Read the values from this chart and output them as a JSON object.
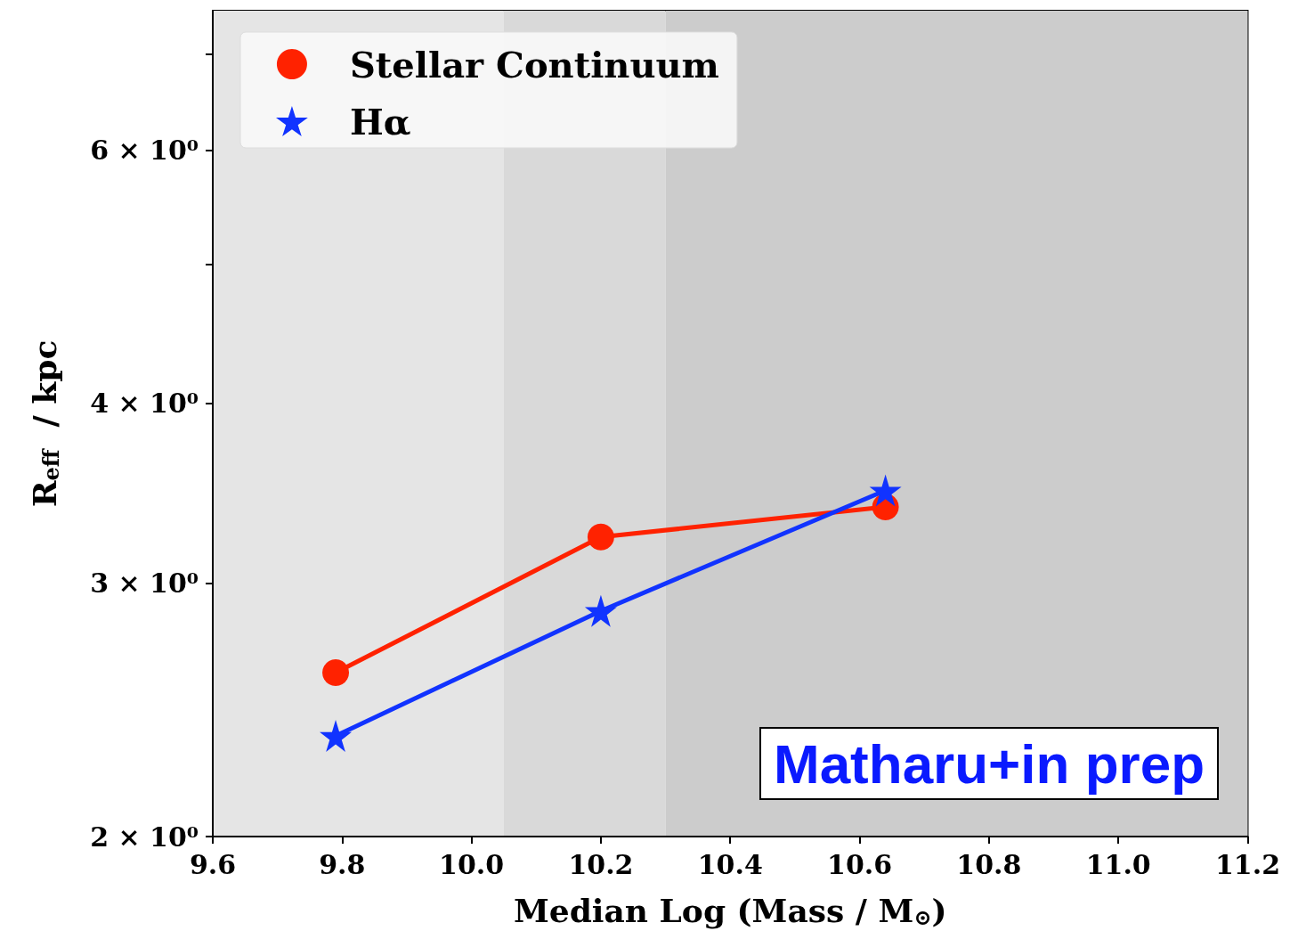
{
  "chart_data": {
    "type": "line",
    "xlabel": "Median Log (Mass / M$_{⊙}$)",
    "ylabel": "R$_{eff}$  / kpc",
    "log": "y",
    "series": [
      {
        "name": "Stellar Continuum",
        "color": "#ff2200",
        "marker": "circle",
        "x": [
          9.79,
          10.2,
          10.64
        ],
        "values": [
          2.6,
          3.23,
          3.39
        ]
      },
      {
        "name": "Hα",
        "color": "#1133ff",
        "marker": "star",
        "x": [
          9.79,
          10.2,
          10.64
        ],
        "values": [
          2.35,
          2.87,
          3.48
        ]
      }
    ],
    "xlim": [
      9.6,
      11.2
    ],
    "xticks": [
      {
        "value": 9.6,
        "label": "9.6"
      },
      {
        "value": 9.8,
        "label": "9.8"
      },
      {
        "value": 10,
        "label": "10.0"
      },
      {
        "value": 10.2,
        "label": "10.2"
      },
      {
        "value": 10.4,
        "label": "10.4"
      },
      {
        "value": 10.6,
        "label": "10.6"
      },
      {
        "value": 10.8,
        "label": "10.8"
      },
      {
        "value": 11,
        "label": "11.0"
      },
      {
        "value": 11.2,
        "label": "11.2"
      }
    ],
    "ylim": [
      2,
      7.5
    ],
    "yticks": [
      {
        "value": 2,
        "label": "2 × 10⁰"
      },
      {
        "value": 3,
        "label": "3 × 10⁰"
      },
      {
        "value": 4,
        "label": "4 × 10⁰"
      },
      {
        "value": 5,
        "label": null
      },
      {
        "value": 6,
        "label": "6 × 10⁰"
      },
      {
        "value": 7,
        "label": null
      }
    ],
    "bands": [
      {
        "axis": "x",
        "from": 9.6,
        "to": 10.05,
        "color": "#e5e5e5"
      },
      {
        "axis": "x",
        "from": 10.05,
        "to": 10.3,
        "color": "#d9d9d9"
      },
      {
        "axis": "x",
        "from": 10.3,
        "to": 11.2,
        "color": "#cccccc"
      }
    ],
    "grid": false,
    "legend": "top left",
    "line_style": "solid",
    "annotations": [
      "Matharu+in prep"
    ]
  }
}
